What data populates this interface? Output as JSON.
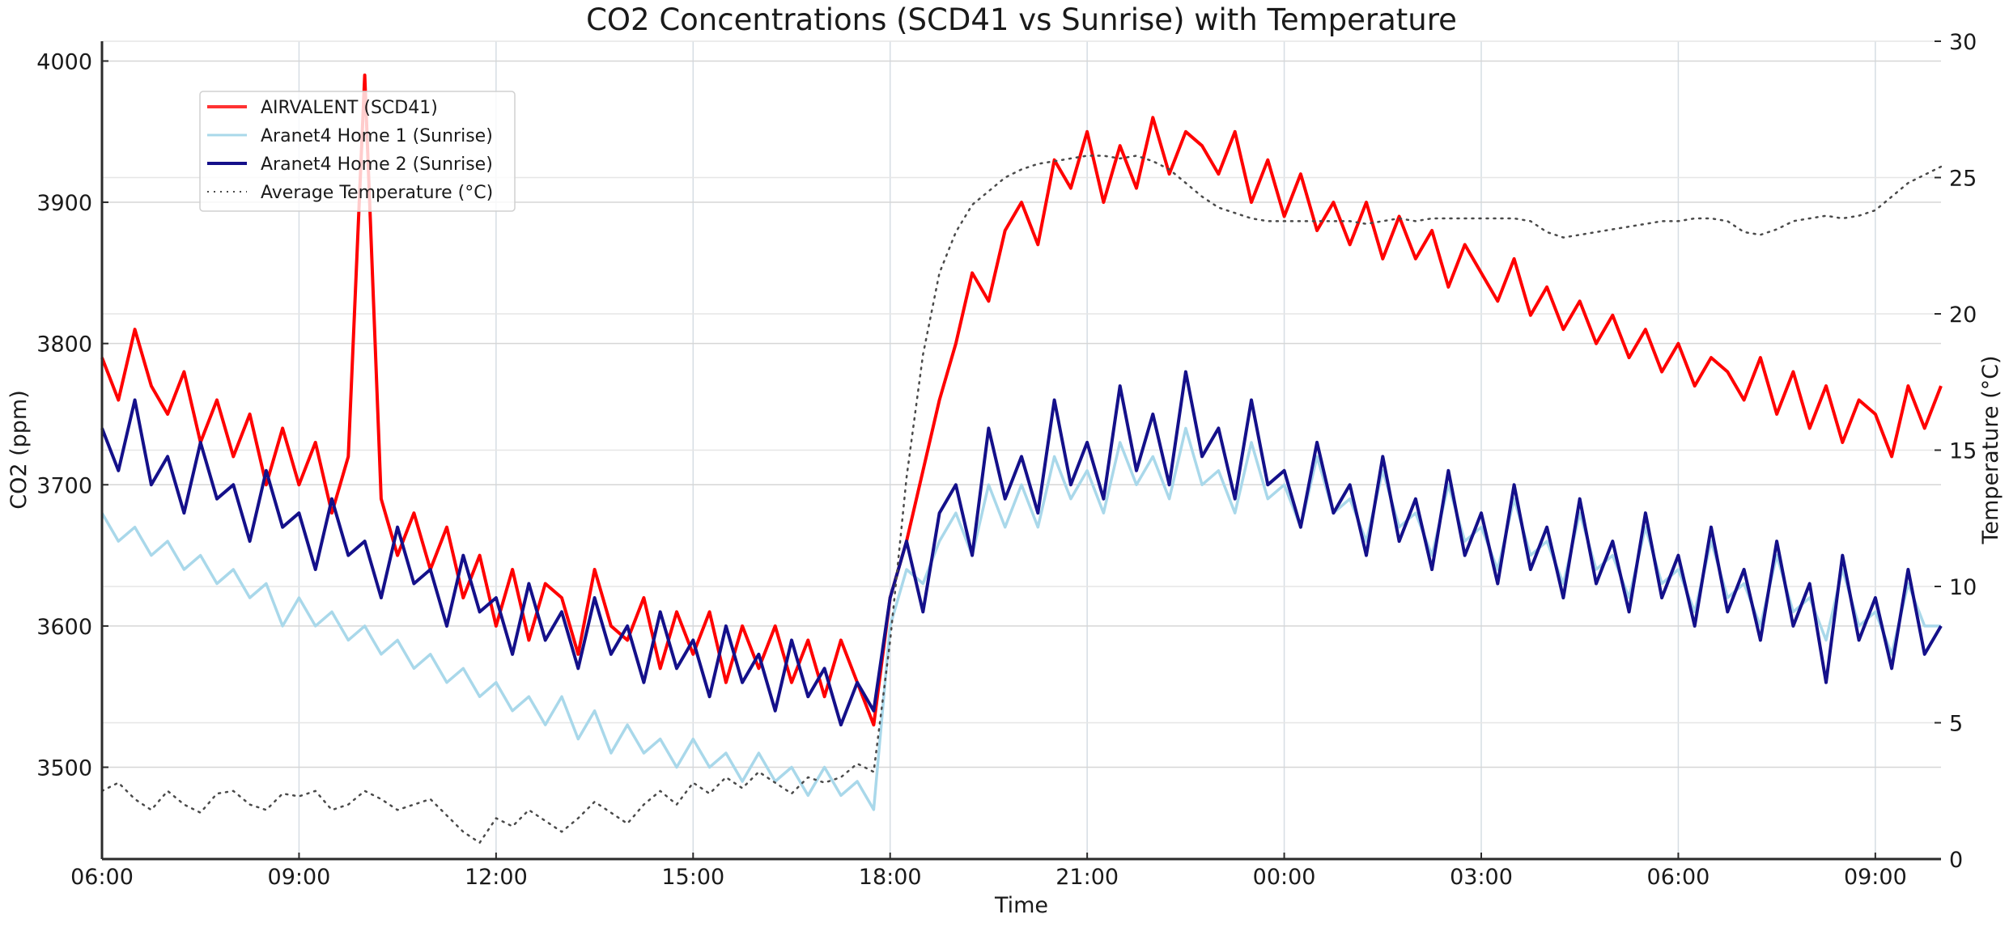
{
  "chart_data": {
    "type": "line",
    "title": "CO2 Concentrations (SCD41 vs Sunrise) with Temperature",
    "xlabel": "Time",
    "ylabel": "CO2 (ppm)",
    "y2label": "Temperature (°C)",
    "x_start": "06:00",
    "x_step_minutes": 15,
    "x_range_hours": [
      0,
      28
    ],
    "x_ticks": [
      {
        "hours": 0,
        "label": "06:00"
      },
      {
        "hours": 3,
        "label": "09:00"
      },
      {
        "hours": 6,
        "label": "12:00"
      },
      {
        "hours": 9,
        "label": "15:00"
      },
      {
        "hours": 12,
        "label": "18:00"
      },
      {
        "hours": 15,
        "label": "21:00"
      },
      {
        "hours": 18,
        "label": "00:00"
      },
      {
        "hours": 21,
        "label": "03:00"
      },
      {
        "hours": 24,
        "label": "06:00"
      },
      {
        "hours": 27,
        "label": "09:00"
      }
    ],
    "ylim": [
      3435,
      4014
    ],
    "y_ticks": [
      3500,
      3600,
      3700,
      3800,
      3900,
      4000
    ],
    "y2lim": [
      0,
      30
    ],
    "y2_ticks": [
      0,
      5,
      10,
      15,
      20,
      25,
      30
    ],
    "grid": true,
    "legend": {
      "placement": "upper-left"
    },
    "series": [
      {
        "name": "AIRVALENT (SCD41)",
        "axis": "left",
        "color": "#ff0000",
        "style": "solid",
        "values": [
          3790,
          3760,
          3810,
          3770,
          3750,
          3780,
          3730,
          3760,
          3720,
          3750,
          3700,
          3740,
          3700,
          3730,
          3680,
          3720,
          3990,
          3690,
          3650,
          3680,
          3640,
          3670,
          3620,
          3650,
          3600,
          3640,
          3590,
          3630,
          3620,
          3580,
          3640,
          3600,
          3590,
          3620,
          3570,
          3610,
          3580,
          3610,
          3560,
          3600,
          3570,
          3600,
          3560,
          3590,
          3550,
          3590,
          3560,
          3530,
          3620,
          3660,
          3710,
          3760,
          3800,
          3850,
          3830,
          3880,
          3900,
          3870,
          3930,
          3910,
          3950,
          3900,
          3940,
          3910,
          3960,
          3920,
          3950,
          3940,
          3920,
          3950,
          3900,
          3930,
          3890,
          3920,
          3880,
          3900,
          3870,
          3900,
          3860,
          3890,
          3860,
          3880,
          3840,
          3870,
          3850,
          3830,
          3860,
          3820,
          3840,
          3810,
          3830,
          3800,
          3820,
          3790,
          3810,
          3780,
          3800,
          3770,
          3790,
          3780,
          3760,
          3790,
          3750,
          3780,
          3740,
          3770,
          3730,
          3760,
          3750,
          3720,
          3770,
          3740,
          3770
        ]
      },
      {
        "name": "Aranet4 Home 1 (Sunrise)",
        "axis": "left",
        "color": "#a9d8ea",
        "style": "solid",
        "values": [
          3680,
          3660,
          3670,
          3650,
          3660,
          3640,
          3650,
          3630,
          3640,
          3620,
          3630,
          3600,
          3620,
          3600,
          3610,
          3590,
          3600,
          3580,
          3590,
          3570,
          3580,
          3560,
          3570,
          3550,
          3560,
          3540,
          3550,
          3530,
          3550,
          3520,
          3540,
          3510,
          3530,
          3510,
          3520,
          3500,
          3520,
          3500,
          3510,
          3490,
          3510,
          3490,
          3500,
          3480,
          3500,
          3480,
          3490,
          3470,
          3600,
          3640,
          3630,
          3660,
          3680,
          3650,
          3700,
          3670,
          3700,
          3670,
          3720,
          3690,
          3710,
          3680,
          3730,
          3700,
          3720,
          3690,
          3740,
          3700,
          3710,
          3680,
          3730,
          3690,
          3700,
          3670,
          3720,
          3680,
          3690,
          3660,
          3710,
          3670,
          3680,
          3650,
          3700,
          3660,
          3670,
          3640,
          3690,
          3650,
          3660,
          3630,
          3680,
          3640,
          3650,
          3620,
          3670,
          3630,
          3640,
          3610,
          3660,
          3620,
          3630,
          3600,
          3650,
          3610,
          3620,
          3590,
          3640,
          3600,
          3610,
          3580,
          3630,
          3600,
          3600
        ]
      },
      {
        "name": "Aranet4 Home 2 (Sunrise)",
        "axis": "left",
        "color": "#14108a",
        "style": "solid",
        "values": [
          3740,
          3710,
          3760,
          3700,
          3720,
          3680,
          3730,
          3690,
          3700,
          3660,
          3710,
          3670,
          3680,
          3640,
          3690,
          3650,
          3660,
          3620,
          3670,
          3630,
          3640,
          3600,
          3650,
          3610,
          3620,
          3580,
          3630,
          3590,
          3610,
          3570,
          3620,
          3580,
          3600,
          3560,
          3610,
          3570,
          3590,
          3550,
          3600,
          3560,
          3580,
          3540,
          3590,
          3550,
          3570,
          3530,
          3560,
          3540,
          3620,
          3660,
          3610,
          3680,
          3700,
          3650,
          3740,
          3690,
          3720,
          3680,
          3760,
          3700,
          3730,
          3690,
          3770,
          3710,
          3750,
          3700,
          3780,
          3720,
          3740,
          3690,
          3760,
          3700,
          3710,
          3670,
          3730,
          3680,
          3700,
          3650,
          3720,
          3660,
          3690,
          3640,
          3710,
          3650,
          3680,
          3630,
          3700,
          3640,
          3670,
          3620,
          3690,
          3630,
          3660,
          3610,
          3680,
          3620,
          3650,
          3600,
          3670,
          3610,
          3640,
          3590,
          3660,
          3600,
          3630,
          3560,
          3650,
          3590,
          3620,
          3570,
          3640,
          3580,
          3600
        ]
      },
      {
        "name": "Average Temperature (°C)",
        "axis": "right",
        "color": "#4a4a4a",
        "style": "dotted",
        "values": [
          2.5,
          2.8,
          2.2,
          1.8,
          2.5,
          2.0,
          1.7,
          2.4,
          2.5,
          2.0,
          1.8,
          2.4,
          2.3,
          2.5,
          1.8,
          2.0,
          2.5,
          2.2,
          1.8,
          2.0,
          2.2,
          1.6,
          1.0,
          0.6,
          1.5,
          1.2,
          1.8,
          1.4,
          1.0,
          1.5,
          2.1,
          1.7,
          1.3,
          2.0,
          2.5,
          2.0,
          2.8,
          2.4,
          3.0,
          2.6,
          3.2,
          2.8,
          2.4,
          3.0,
          2.8,
          3.0,
          3.5,
          3.2,
          8.0,
          14.0,
          18.5,
          21.5,
          23.0,
          24.0,
          24.5,
          25.0,
          25.3,
          25.5,
          25.6,
          25.7,
          25.8,
          25.8,
          25.7,
          25.8,
          25.6,
          25.3,
          24.8,
          24.3,
          23.9,
          23.7,
          23.5,
          23.4,
          23.4,
          23.4,
          23.4,
          23.4,
          23.4,
          23.3,
          23.4,
          23.5,
          23.4,
          23.5,
          23.5,
          23.5,
          23.5,
          23.5,
          23.5,
          23.4,
          23.0,
          22.8,
          22.9,
          23.0,
          23.1,
          23.2,
          23.3,
          23.4,
          23.4,
          23.5,
          23.5,
          23.4,
          23.0,
          22.9,
          23.1,
          23.4,
          23.5,
          23.6,
          23.5,
          23.6,
          23.8,
          24.3,
          24.8,
          25.1,
          25.4
        ]
      }
    ]
  }
}
